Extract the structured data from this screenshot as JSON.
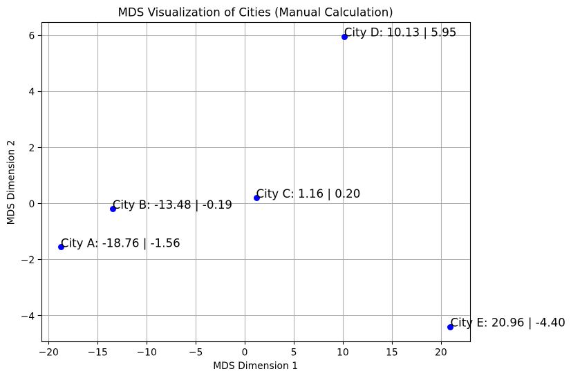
{
  "chart_data": {
    "type": "scatter",
    "title": "MDS Visualization of Cities (Manual Calculation)",
    "xlabel": "MDS Dimension 1",
    "ylabel": "MDS Dimension 2",
    "xlim": [
      -20.746,
      22.946
    ],
    "ylim": [
      -4.9175,
      6.4675
    ],
    "xticks": [
      -20,
      -15,
      -10,
      -5,
      0,
      5,
      10,
      15,
      20
    ],
    "xtick_labels": [
      "−20",
      "−15",
      "−10",
      "−5",
      "0",
      "5",
      "10",
      "15",
      "20"
    ],
    "yticks": [
      -4,
      -2,
      0,
      2,
      4,
      6
    ],
    "ytick_labels": [
      "−4",
      "−2",
      "0",
      "2",
      "4",
      "6"
    ],
    "grid": true,
    "legend": null,
    "colors": {
      "marker": "#0000ff",
      "grid": "#b0b0b0",
      "spine": "#000000",
      "text": "#000000",
      "background": "#ffffff"
    },
    "marker_radius_px": 4.5,
    "points": [
      {
        "name": "City A",
        "x": -18.76,
        "y": -1.56,
        "label": "City A: -18.76 | -1.56"
      },
      {
        "name": "City B",
        "x": -13.48,
        "y": -0.19,
        "label": "City B: -13.48 | -0.19"
      },
      {
        "name": "City C",
        "x": 1.16,
        "y": 0.2,
        "label": "City C: 1.16 | 0.20"
      },
      {
        "name": "City D",
        "x": 10.13,
        "y": 5.95,
        "label": "City D: 10.13 | 5.95"
      },
      {
        "name": "City E",
        "x": 20.96,
        "y": -4.4,
        "label": "City E: 20.96 | -4.40"
      }
    ]
  }
}
